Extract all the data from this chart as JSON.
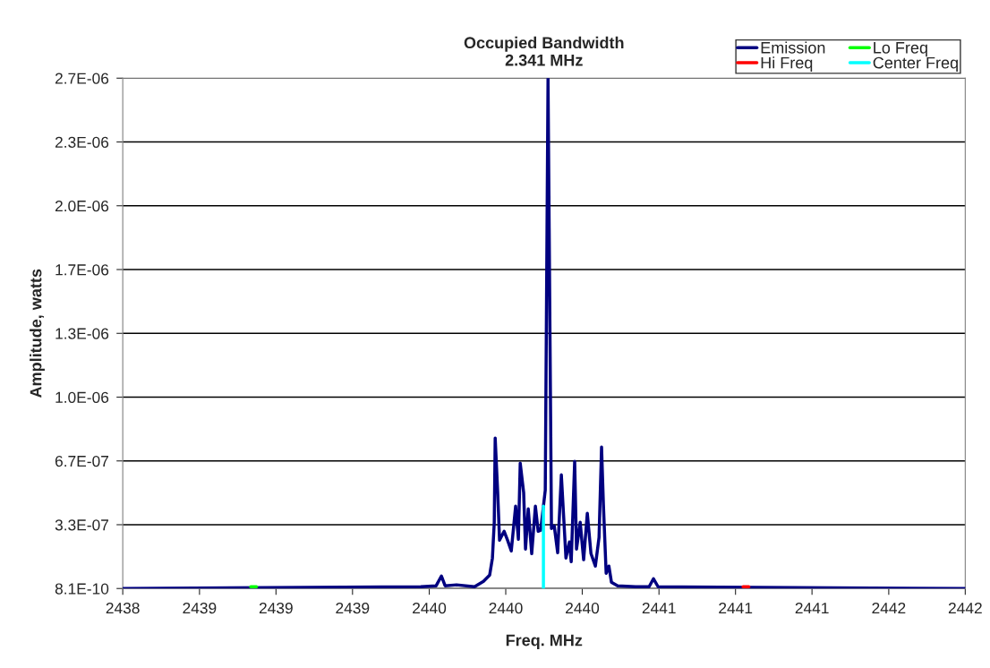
{
  "chart_data": {
    "type": "line",
    "title": "Occupied Bandwidth\n2.341 MHz",
    "xlabel": "Freq. MHz",
    "ylabel": "Amplitude, watts",
    "xlim": [
      2438.333,
      2442.0
    ],
    "xticks": [
      {
        "value": 2438.333,
        "label": "2438"
      },
      {
        "value": 2438.667,
        "label": "2439"
      },
      {
        "value": 2439.0,
        "label": "2439"
      },
      {
        "value": 2439.333,
        "label": "2439"
      },
      {
        "value": 2439.667,
        "label": "2440"
      },
      {
        "value": 2440.0,
        "label": "2440"
      },
      {
        "value": 2440.333,
        "label": "2440"
      },
      {
        "value": 2440.667,
        "label": "2441"
      },
      {
        "value": 2441.0,
        "label": "2441"
      },
      {
        "value": 2441.333,
        "label": "2441"
      },
      {
        "value": 2441.667,
        "label": "2442"
      },
      {
        "value": 2442.0,
        "label": "2442"
      }
    ],
    "ylim": [
      8.1e-10,
      2.6675e-06
    ],
    "yticks": [
      {
        "value": 8.1e-10,
        "label": "8.1E-10"
      },
      {
        "value": 3.3414e-07,
        "label": "3.3E-07"
      },
      {
        "value": 6.6747e-07,
        "label": "6.7E-07"
      },
      {
        "value": 1.0008e-06,
        "label": "1.0E-06"
      },
      {
        "value": 1.3341e-06,
        "label": "1.3E-06"
      },
      {
        "value": 1.6675e-06,
        "label": "1.7E-06"
      },
      {
        "value": 2.0008e-06,
        "label": "2.0E-06"
      },
      {
        "value": 2.3341e-06,
        "label": "2.3E-06"
      },
      {
        "value": 2.6675e-06,
        "label": "2.7E-06"
      }
    ],
    "grid": "y",
    "legend": "top right",
    "marker": "none",
    "line_style": "solid",
    "series": [
      {
        "name": "Emission",
        "color": "#000080",
        "x": [
          2438.333,
          2439.63,
          2439.697,
          2439.72,
          2439.736,
          2439.786,
          2439.864,
          2439.903,
          2439.93,
          2439.942,
          2439.95,
          2439.954,
          2439.965,
          2439.973,
          2439.993,
          2440.008,
          2440.024,
          2440.043,
          2440.055,
          2440.063,
          2440.078,
          2440.086,
          2440.098,
          2440.113,
          2440.129,
          2440.141,
          2440.152,
          2440.164,
          2440.172,
          2440.184,
          2440.199,
          2440.211,
          2440.226,
          2440.242,
          2440.262,
          2440.277,
          2440.285,
          2440.3,
          2440.308,
          2440.324,
          2440.339,
          2440.355,
          2440.371,
          2440.39,
          2440.406,
          2440.417,
          2440.425,
          2440.437,
          2440.449,
          2440.46,
          2440.487,
          2440.565,
          2440.624,
          2440.643,
          2440.663,
          2442.0
        ],
        "values": [
          8.1e-10,
          1e-08,
          1.5e-08,
          6.6e-08,
          1.5e-08,
          2e-08,
          1e-08,
          3.8e-08,
          7.1e-08,
          1.6e-07,
          3.47e-07,
          7.87e-07,
          5.01e-07,
          2.53e-07,
          3e-07,
          2.53e-07,
          1.97e-07,
          4.31e-07,
          2.58e-07,
          6.56e-07,
          5.01e-07,
          2.07e-07,
          4.17e-07,
          1.83e-07,
          4.31e-07,
          3e-07,
          3.05e-07,
          4.31e-07,
          5.15e-07,
          2.667e-06,
          3.14e-07,
          3.28e-07,
          1.88e-07,
          5.95e-07,
          1.6e-07,
          2.44e-07,
          1.41e-07,
          6.65e-07,
          2.07e-07,
          3.47e-07,
          1.51e-07,
          3.94e-07,
          1.83e-07,
          1.18e-07,
          2.67e-07,
          7.4e-07,
          4.41e-07,
          8e-08,
          1.18e-07,
          3.4e-08,
          1.5e-08,
          1e-08,
          1e-08,
          5.2e-08,
          1e-08,
          8.1e-10
        ]
      },
      {
        "name": "Lo Freq",
        "color": "#00ff00",
        "x": [
          2438.89,
          2438.915
        ],
        "values": [
          1e-08,
          1e-08
        ]
      },
      {
        "name": "Hi Freq",
        "color": "#ff0000",
        "x": [
          2441.033,
          2441.058
        ],
        "values": [
          1e-08,
          1e-08
        ]
      },
      {
        "name": "Center Freq",
        "color": "#00ffff",
        "x": [
          2440.164,
          2440.164
        ],
        "values": [
          8.1e-10,
          4.31e-07
        ]
      }
    ]
  }
}
